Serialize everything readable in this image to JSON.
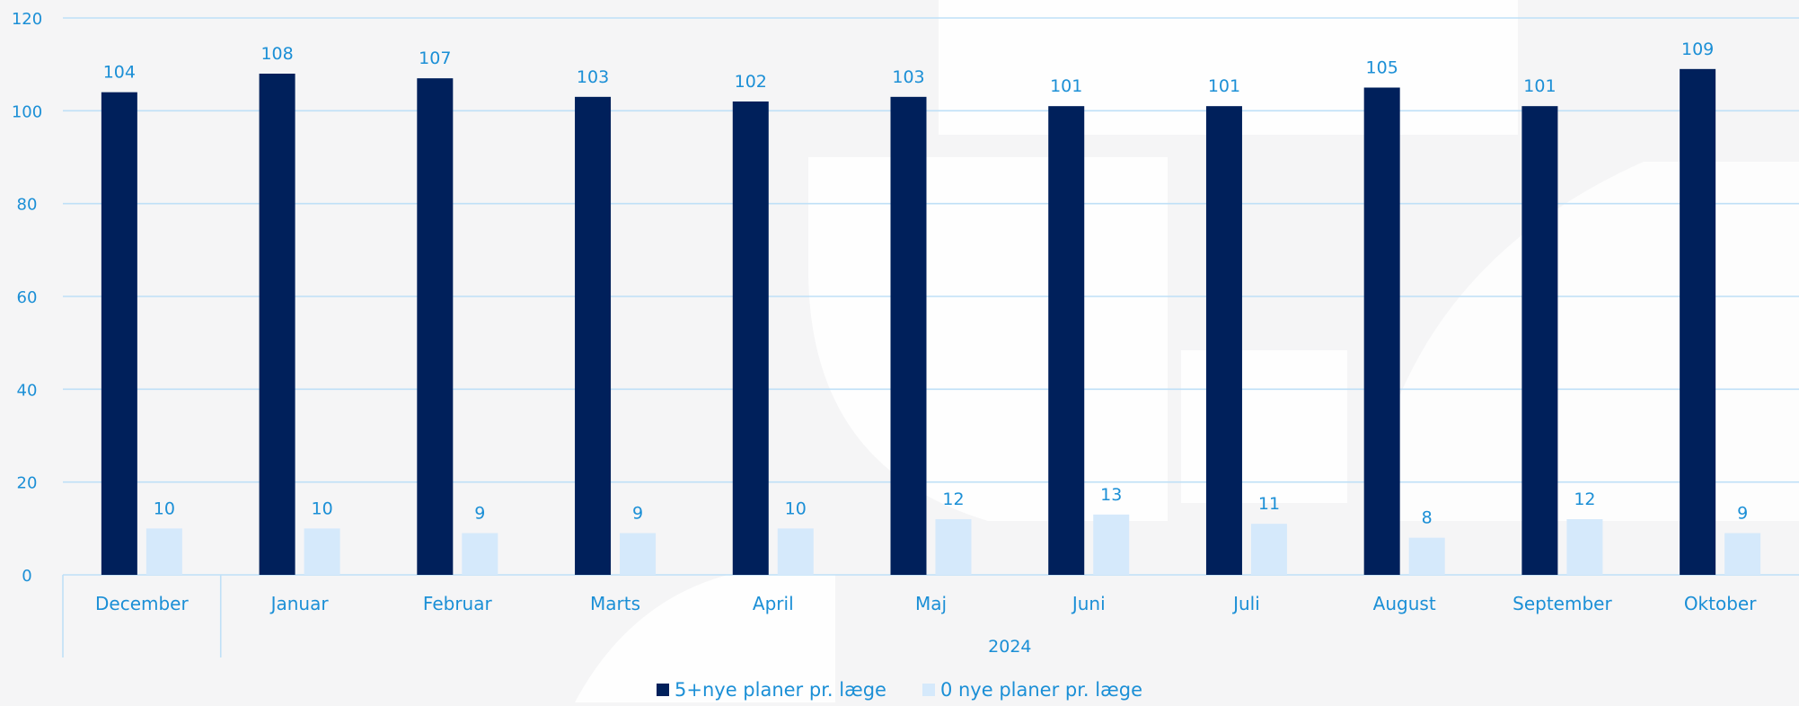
{
  "chart_data": {
    "type": "bar",
    "title": "",
    "xlabel": "",
    "ylabel": "",
    "ylim": [
      0,
      120
    ],
    "yticks": [
      0,
      20,
      40,
      60,
      80,
      100,
      120
    ],
    "grid": true,
    "legend_position": "bottom-center",
    "categories": [
      "December",
      "Januar",
      "Februar",
      "Marts",
      "April",
      "Maj",
      "Juni",
      "Juli",
      "August",
      "September",
      "Oktober"
    ],
    "category_groups": [
      {
        "label": "",
        "span": 1
      },
      {
        "label": "2024",
        "span": 10
      }
    ],
    "series": [
      {
        "name": "5+nye planer pr. læge",
        "color": "#00205b",
        "values": [
          104,
          108,
          107,
          103,
          102,
          103,
          101,
          101,
          105,
          101,
          109
        ]
      },
      {
        "name": "0 nye planer pr. læge",
        "color": "#d5e9fb",
        "values": [
          10,
          10,
          9,
          9,
          10,
          12,
          13,
          11,
          8,
          12,
          9
        ]
      }
    ],
    "colors": {
      "text": "#1b8fd6",
      "grid": "#bfe0f7",
      "background": "#f5f5f6",
      "watermark": "#ffffff"
    }
  }
}
